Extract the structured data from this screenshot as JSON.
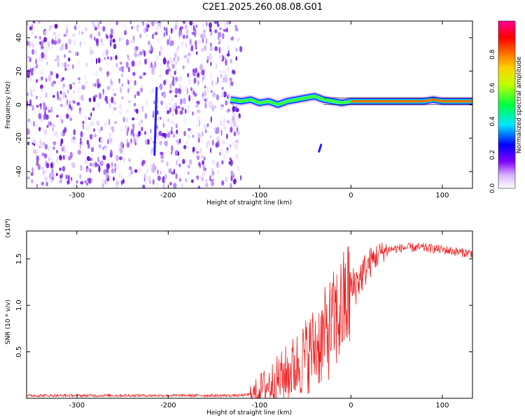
{
  "title": "C2E1.2025.260.08.08.G01",
  "chart_data": [
    {
      "type": "heatmap",
      "xlabel": "Height of straight line (km)",
      "ylabel": "Frequency (Hz)",
      "xlim": [
        -355,
        133
      ],
      "ylim": [
        -50,
        50
      ],
      "xticks": [
        -300,
        -200,
        -100,
        0,
        100
      ],
      "yticks": [
        -40,
        -20,
        0,
        20,
        40
      ],
      "grid": false,
      "colorbar": {
        "label": "Normalized spectral amplitude",
        "range": [
          0,
          1
        ],
        "ticks": [
          "0.0",
          "0.2",
          "0.4",
          "0.6",
          "0.8"
        ],
        "colors": [
          "#ffffff",
          "#c070ff",
          "#7000ff",
          "#0000ff",
          "#00ffff",
          "#00ff00",
          "#ffff00",
          "#ff8000",
          "#ff0000",
          "#ff00a0"
        ]
      },
      "signal_trace": {
        "description_of_data": "frequency offset of dominant component vs height",
        "x": [
          -132,
          -120,
          -110,
          -100,
          -90,
          -80,
          -70,
          -60,
          -50,
          -40,
          -30,
          -20,
          -10,
          0,
          10,
          20,
          40,
          60,
          80,
          90,
          100,
          133
        ],
        "y": [
          3,
          2,
          3,
          1,
          2,
          0,
          2,
          3,
          4,
          5,
          3,
          2,
          1,
          2,
          2,
          2,
          2,
          2,
          2,
          3,
          2,
          2
        ]
      },
      "noise_region": {
        "x_from": -355,
        "x_to": -128
      },
      "bright_streaks": [
        {
          "x": -215,
          "y_from": -30,
          "y_to": 10
        },
        {
          "x": -35,
          "y_from": -28,
          "y_to": -24
        }
      ]
    },
    {
      "type": "line",
      "xlabel": "Height of straight line (km)",
      "ylabel": "SNR (10 * v/v)",
      "scale_label": "(x10⁴)",
      "xlim": [
        -355,
        133
      ],
      "ylim": [
        0,
        1.8
      ],
      "xticks": [
        -300,
        -200,
        -100,
        0,
        100
      ],
      "yticks": [
        0.5,
        1.0,
        1.5
      ],
      "ytick_labels": [
        "0.5",
        "1.0",
        "1.5"
      ],
      "grid": false,
      "color": "#ee2020",
      "series": [
        {
          "x": [
            -355,
            -300,
            -250,
            -200,
            -150,
            -120,
            -105,
            -100,
            -90,
            -80,
            -70,
            -60,
            -50,
            -40,
            -30,
            -20,
            -10,
            -5,
            0,
            10,
            20,
            30,
            40,
            60,
            80,
            100,
            120,
            133
          ],
          "values": [
            0.03,
            0.03,
            0.03,
            0.03,
            0.03,
            0.03,
            0.05,
            0.1,
            0.15,
            0.2,
            0.27,
            0.35,
            0.45,
            0.55,
            0.65,
            0.8,
            0.95,
            1.05,
            1.15,
            1.3,
            1.45,
            1.55,
            1.6,
            1.62,
            1.62,
            1.6,
            1.57,
            1.56
          ]
        }
      ]
    }
  ]
}
